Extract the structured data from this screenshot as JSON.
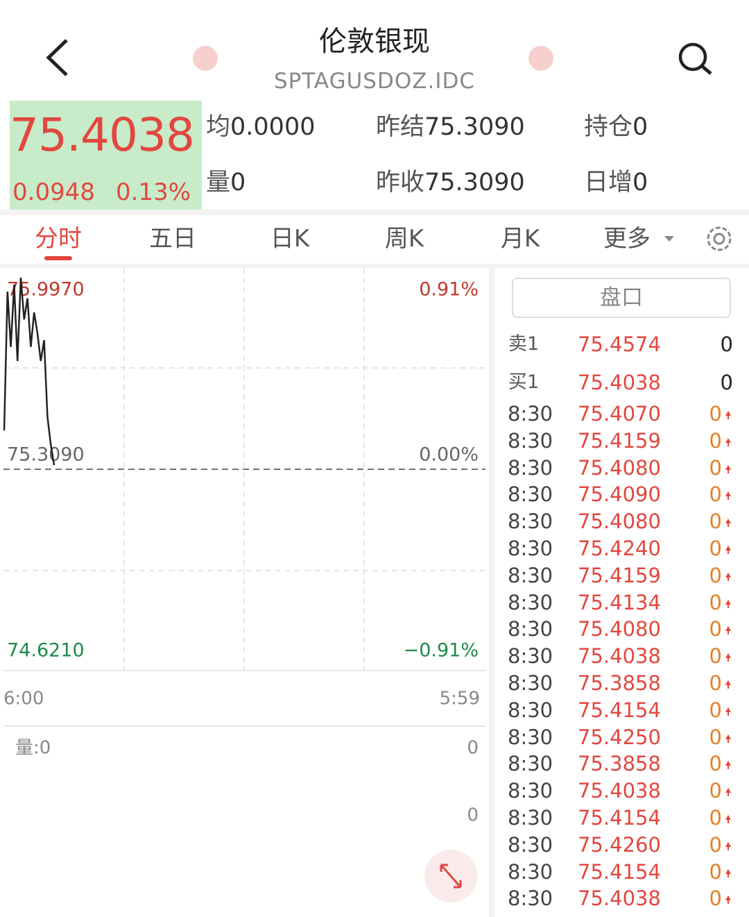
{
  "header": {
    "title": "伦敦银现",
    "code": "SPTAGUSDOZ.IDC"
  },
  "quote": {
    "price": "75.4038",
    "change": "0.0948",
    "change_pct": "0.13%",
    "stats": [
      {
        "label": "均",
        "value": "0.0000"
      },
      {
        "label": "昨结",
        "value": "75.3090"
      },
      {
        "label": "持仓",
        "value": "0"
      },
      {
        "label": "量",
        "value": "0"
      },
      {
        "label": "昨收",
        "value": "75.3090"
      },
      {
        "label": "日增",
        "value": "0"
      }
    ]
  },
  "tabs": [
    "分时",
    "五日",
    "日K",
    "周K",
    "月K",
    "更多"
  ],
  "intraday": {
    "ylim": [
      74.621,
      75.997
    ],
    "yticks": [
      {
        "value": 75.997,
        "label": "75.9970"
      },
      {
        "value": 75.309,
        "label": "75.3090"
      },
      {
        "value": 74.621,
        "label": "74.6210"
      }
    ],
    "pct_labels": [
      "0.91%",
      "0.00%",
      "−0.91%"
    ],
    "x_labels": [
      "6:00",
      "5:59"
    ],
    "values": [
      75.442,
      75.916,
      75.727,
      75.94,
      75.679,
      75.964,
      75.821,
      75.893,
      75.727,
      75.845,
      75.774,
      75.679,
      75.75,
      75.489,
      75.394,
      75.323
    ],
    "volume_label": "量:0",
    "volume_ticks": [
      "0",
      "0"
    ]
  },
  "order_book": {
    "title": "盘口",
    "quotes": [
      {
        "label": "卖1",
        "price": "75.4574",
        "volume": "0"
      },
      {
        "label": "买1",
        "price": "75.4038",
        "volume": "0"
      }
    ],
    "trades": [
      {
        "time": "8:30",
        "price": "75.4070",
        "volume": "0"
      },
      {
        "time": "8:30",
        "price": "75.4159",
        "volume": "0"
      },
      {
        "time": "8:30",
        "price": "75.4080",
        "volume": "0"
      },
      {
        "time": "8:30",
        "price": "75.4090",
        "volume": "0"
      },
      {
        "time": "8:30",
        "price": "75.4080",
        "volume": "0"
      },
      {
        "time": "8:30",
        "price": "75.4240",
        "volume": "0"
      },
      {
        "time": "8:30",
        "price": "75.4159",
        "volume": "0"
      },
      {
        "time": "8:30",
        "price": "75.4134",
        "volume": "0"
      },
      {
        "time": "8:30",
        "price": "75.4080",
        "volume": "0"
      },
      {
        "time": "8:30",
        "price": "75.4038",
        "volume": "0"
      },
      {
        "time": "8:30",
        "price": "75.3858",
        "volume": "0"
      },
      {
        "time": "8:30",
        "price": "75.4154",
        "volume": "0"
      },
      {
        "time": "8:30",
        "price": "75.4250",
        "volume": "0"
      },
      {
        "time": "8:30",
        "price": "75.3858",
        "volume": "0"
      },
      {
        "time": "8:30",
        "price": "75.4038",
        "volume": "0"
      },
      {
        "time": "8:30",
        "price": "75.4154",
        "volume": "0"
      },
      {
        "time": "8:30",
        "price": "75.4260",
        "volume": "0"
      },
      {
        "time": "8:30",
        "price": "75.4154",
        "volume": "0"
      },
      {
        "time": "8:30",
        "price": "75.4038",
        "volume": "0"
      }
    ]
  }
}
